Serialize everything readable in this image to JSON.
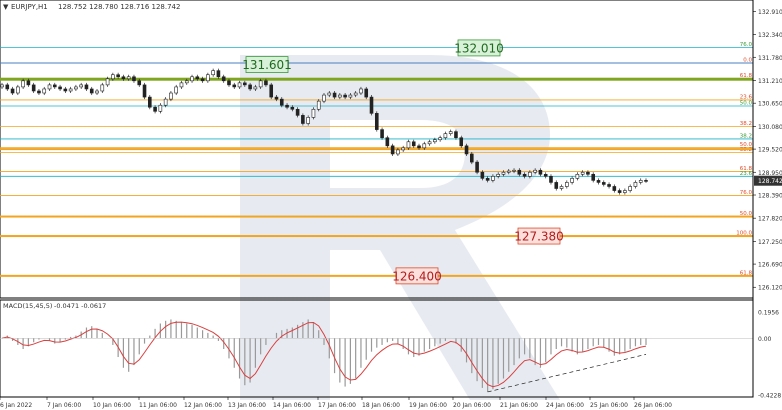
{
  "header": {
    "symbol_label": "EURJPY,H1",
    "ohlc_label": "128.752 128.780 128.716 128.742"
  },
  "macd_header": {
    "label": "MACD(15,45,5)",
    "values": "-0.0471 -0.0617"
  },
  "colors": {
    "bull": "#2e8b2e",
    "bear": "#c0392b",
    "fib_orange": "#f2a51f",
    "fib_teal": "#17b3c6",
    "fib_red_label": "#e04a2a",
    "fib_green_label": "#3a9a3a",
    "support_green": "#7fa61e",
    "axis_text": "#333333",
    "macd_signal": "#d94040",
    "macd_hist": "#999999",
    "watermark": "#e3e8ef",
    "price_box": "#333333"
  },
  "chart_data": [
    {
      "type": "candlestick",
      "title": "EURJPY,H1",
      "ylim": [
        125.88,
        133.14
      ],
      "y_ticks": [
        "132.910",
        "132.340",
        "131.780",
        "131.210",
        "130.650",
        "130.080",
        "129.520",
        "128.950",
        "128.390",
        "127.820",
        "127.250",
        "126.690",
        "126.120"
      ],
      "x_ticks": [
        "6 Jan 2022",
        "7 Jan 06:00",
        "10 Jan 06:00",
        "11 Jan 06:00",
        "12 Jan 06:00",
        "13 Jan 06:00",
        "14 Jan 06:00",
        "17 Jan 06:00",
        "18 Jan 06:00",
        "19 Jan 06:00",
        "20 Jan 06:00",
        "21 Jan 06:00",
        "24 Jan 06:00",
        "25 Jan 06:00",
        "26 Jan 06:00"
      ],
      "last_price": "128.742",
      "targets": [
        {
          "label": "132.010",
          "value": 132.01,
          "style": "green-box"
        },
        {
          "label": "131.601",
          "value": 131.601,
          "style": "green-box"
        },
        {
          "label": "127.380",
          "value": 127.38,
          "style": "red-box"
        },
        {
          "label": "126.400",
          "value": 126.4,
          "style": "red-box"
        }
      ],
      "levels": [
        {
          "label": "76.0",
          "value": 132.02,
          "color": "teal"
        },
        {
          "label": "0.0",
          "value": 131.64,
          "color": "orange"
        },
        {
          "label": "61.8",
          "value": 131.26,
          "color": "orange"
        },
        {
          "label": "23.6",
          "value": 130.73,
          "color": "orange"
        },
        {
          "label": "50.0",
          "value": 130.58,
          "color": "teal"
        },
        {
          "label": "38.2",
          "value": 130.08,
          "color": "orange"
        },
        {
          "label": "38.2",
          "value": 129.77,
          "color": "teal"
        },
        {
          "label": "50.0",
          "value": 129.56,
          "color": "orange"
        },
        {
          "label": "38.2",
          "value": 129.44,
          "color": "orange"
        },
        {
          "label": "61.8",
          "value": 128.97,
          "color": "orange"
        },
        {
          "label": "23.6",
          "value": 128.85,
          "color": "teal"
        },
        {
          "label": "76.0",
          "value": 128.38,
          "color": "orange"
        },
        {
          "label": "50.0",
          "value": 127.86,
          "color": "orange"
        },
        {
          "label": "100.0",
          "value": 127.38,
          "color": "orange"
        },
        {
          "label": "61.8",
          "value": 126.4,
          "color": "orange"
        }
      ],
      "candles": [
        131.1,
        131.0,
        130.9,
        131.05,
        131.2,
        131.1,
        130.95,
        130.9,
        131.0,
        131.1,
        131.05,
        131.0,
        130.95,
        131.0,
        131.05,
        131.1,
        131.0,
        130.9,
        130.95,
        131.1,
        131.25,
        131.35,
        131.3,
        131.25,
        131.3,
        131.2,
        131.1,
        130.8,
        130.55,
        130.45,
        130.6,
        130.75,
        130.9,
        131.05,
        131.15,
        131.2,
        131.3,
        131.25,
        131.2,
        131.35,
        131.45,
        131.3,
        131.2,
        131.1,
        131.05,
        131.15,
        131.1,
        131.0,
        131.05,
        131.2,
        131.1,
        130.8,
        130.75,
        130.6,
        130.55,
        130.5,
        130.35,
        130.15,
        130.3,
        130.5,
        130.7,
        130.85,
        130.9,
        130.8,
        130.85,
        130.8,
        130.85,
        130.9,
        131.0,
        130.8,
        130.4,
        130.0,
        129.8,
        129.6,
        129.4,
        129.5,
        129.55,
        129.7,
        129.6,
        129.55,
        129.65,
        129.7,
        129.75,
        129.8,
        129.9,
        129.95,
        129.8,
        129.6,
        129.4,
        129.2,
        128.95,
        128.8,
        128.75,
        128.85,
        128.9,
        128.95,
        128.98,
        129.0,
        128.9,
        128.85,
        128.95,
        129.0,
        128.9,
        128.85,
        128.7,
        128.55,
        128.6,
        128.7,
        128.8,
        128.9,
        128.95,
        128.9,
        128.75,
        128.7,
        128.65,
        128.6,
        128.5,
        128.45,
        128.5,
        128.6,
        128.7,
        128.75,
        128.74
      ],
      "macd": {
        "ylim": [
          -0.4228,
          0.1956
        ],
        "y_ticks": [
          "0.1956",
          "0.00",
          "-0.4228"
        ],
        "histogram": [
          0.0,
          0.02,
          -0.02,
          -0.05,
          -0.08,
          -0.06,
          -0.03,
          -0.01,
          0.0,
          -0.02,
          -0.04,
          -0.03,
          -0.01,
          0.01,
          0.02,
          0.05,
          0.08,
          0.09,
          0.07,
          0.04,
          0.0,
          -0.05,
          -0.14,
          -0.22,
          -0.25,
          -0.2,
          -0.12,
          -0.04,
          0.02,
          0.07,
          0.11,
          0.13,
          0.14,
          0.13,
          0.12,
          0.11,
          0.1,
          0.08,
          0.06,
          0.04,
          0.02,
          -0.02,
          -0.08,
          -0.15,
          -0.22,
          -0.3,
          -0.35,
          -0.33,
          -0.22,
          -0.12,
          -0.05,
          0.0,
          0.04,
          0.06,
          0.07,
          0.08,
          0.1,
          0.12,
          0.14,
          0.12,
          0.06,
          -0.05,
          -0.15,
          -0.26,
          -0.33,
          -0.36,
          -0.34,
          -0.3,
          -0.22,
          -0.16,
          -0.1,
          -0.07,
          -0.05,
          -0.03,
          -0.02,
          -0.04,
          -0.08,
          -0.12,
          -0.14,
          -0.13,
          -0.1,
          -0.08,
          -0.06,
          -0.04,
          -0.02,
          0.0,
          -0.04,
          -0.1,
          -0.18,
          -0.26,
          -0.32,
          -0.37,
          -0.4,
          -0.38,
          -0.34,
          -0.3,
          -0.25,
          -0.2,
          -0.15,
          -0.12,
          -0.15,
          -0.2,
          -0.22,
          -0.18,
          -0.12,
          -0.08,
          -0.06,
          -0.07,
          -0.1,
          -0.12,
          -0.1,
          -0.08,
          -0.06,
          -0.05,
          -0.07,
          -0.1,
          -0.13,
          -0.12,
          -0.1,
          -0.08,
          -0.06,
          -0.05,
          -0.05
        ]
      }
    }
  ]
}
